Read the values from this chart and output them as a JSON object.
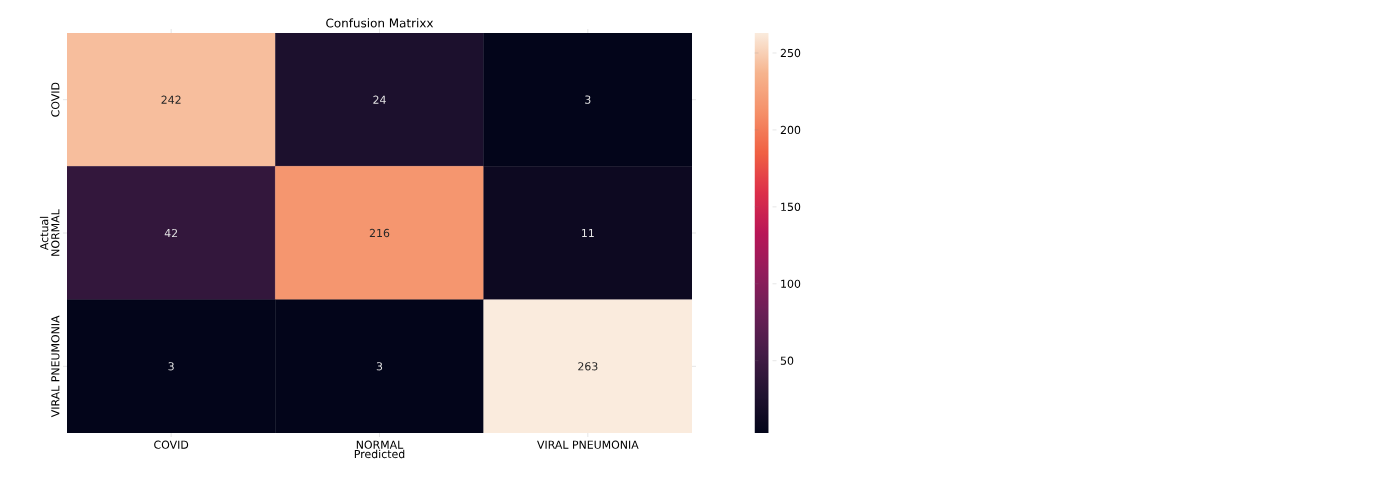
{
  "chart_data": {
    "type": "heatmap",
    "title": "Confusion Matrixx",
    "xlabel": "Predicted",
    "ylabel": "Actual",
    "categories": [
      "COVID",
      "NORMAL",
      "VIRAL PNEUMONIA"
    ],
    "y_categories": [
      "COVID",
      "NORMAL",
      "VIRAL PNEUMONIA"
    ],
    "cells": [
      [
        242,
        24,
        3
      ],
      [
        42,
        216,
        11
      ],
      [
        3,
        3,
        263
      ]
    ],
    "data_labels": true,
    "clim": [
      3,
      263
    ],
    "cticks": [
      50,
      100,
      150,
      200,
      250
    ]
  }
}
